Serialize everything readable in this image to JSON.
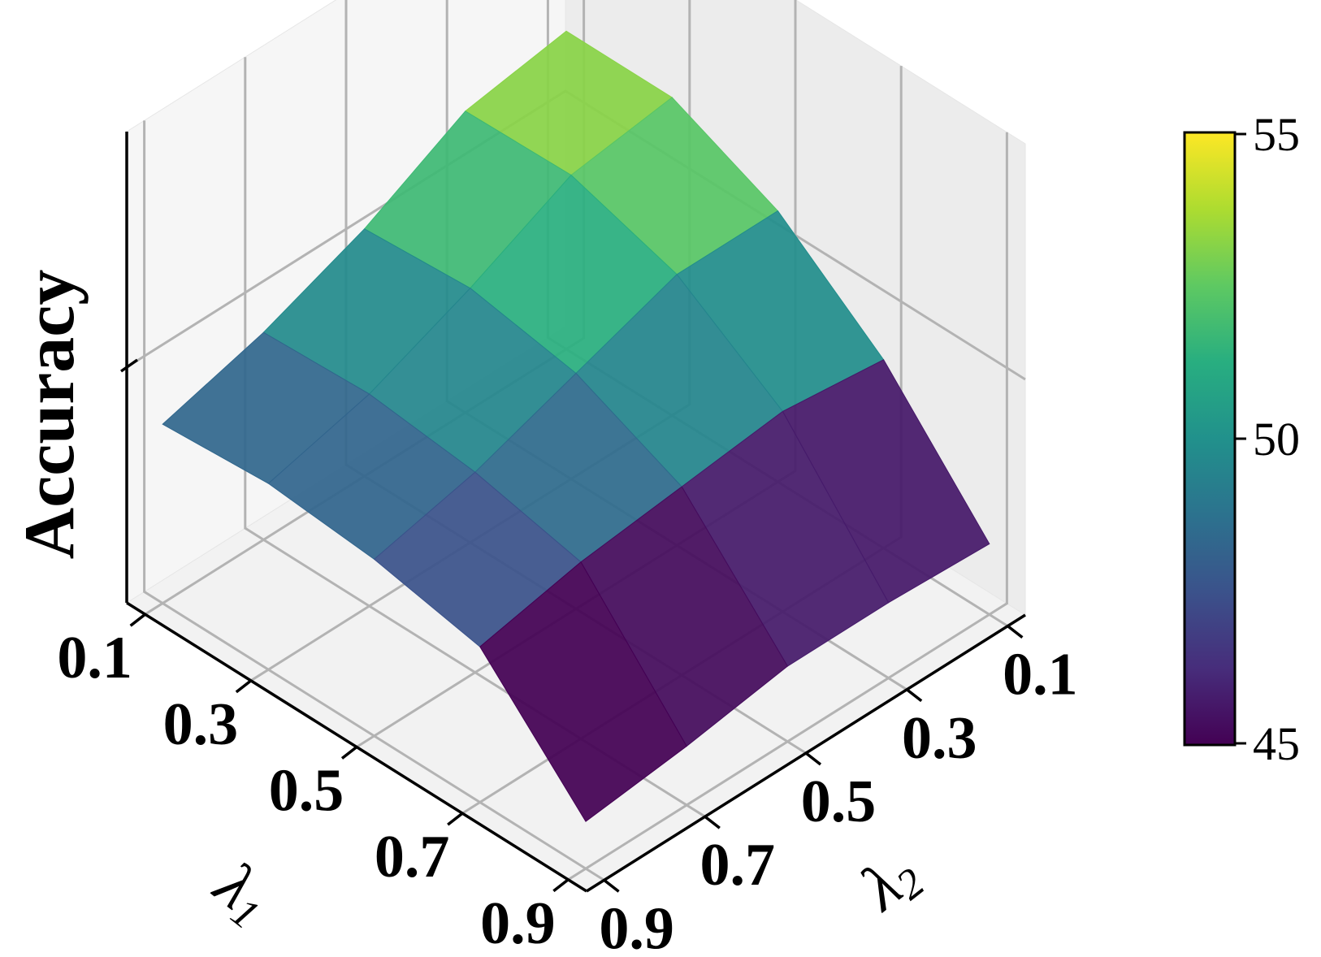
{
  "chart_data": {
    "type": "surface3d",
    "title": "",
    "xlabel": "λ",
    "xlabel_sub": "1",
    "ylabel": "λ",
    "ylabel_sub": "2",
    "zlabel": "Accuracy",
    "x": [
      0.1,
      0.3,
      0.5,
      0.7,
      0.9
    ],
    "y": [
      0.1,
      0.3,
      0.5,
      0.7,
      0.9
    ],
    "x_tick_labels": [
      "0.1",
      "0.3",
      "0.5",
      "0.7",
      "0.9"
    ],
    "y_tick_labels": [
      "0.1",
      "0.3",
      "0.5",
      "0.7",
      "0.9"
    ],
    "zlim": [
      40,
      60
    ],
    "z": [
      [
        53.5,
        52.8,
        50.5,
        48.8,
        47.6
      ],
      [
        53.5,
        52.9,
        50.8,
        49.0,
        47.9
      ],
      [
        51.5,
        51.5,
        50.0,
        48.5,
        47.5
      ],
      [
        48.0,
        48.5,
        48.0,
        47.5,
        46.6
      ],
      [
        43.0,
        43.2,
        43.2,
        42.5,
        42.0
      ]
    ],
    "colormap": "viridis",
    "colorbar": {
      "min": 45,
      "max": 55,
      "ticks": [
        "55",
        "50",
        "45"
      ]
    },
    "grid": true
  }
}
